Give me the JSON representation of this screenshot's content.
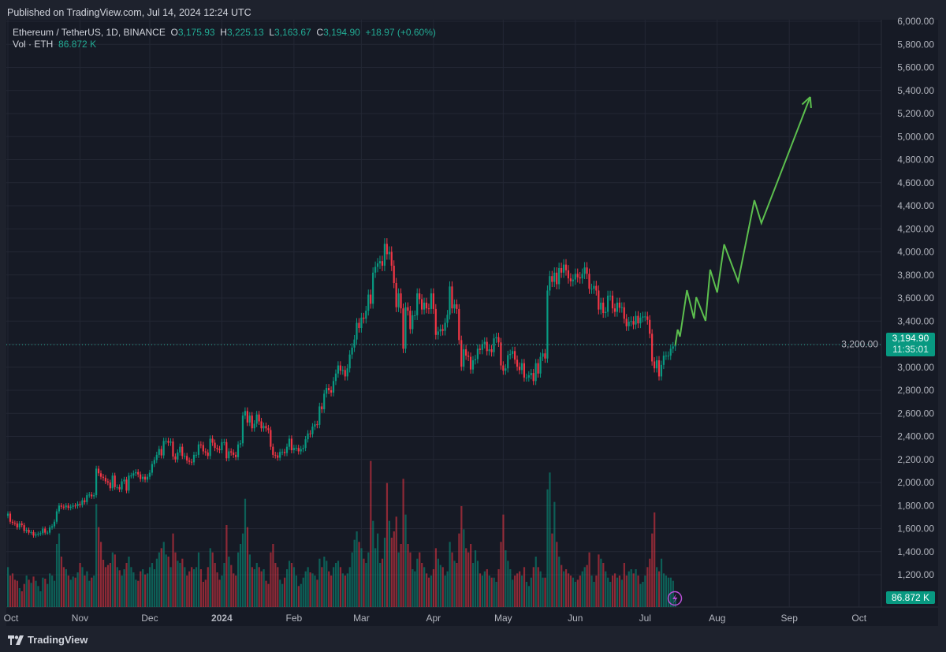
{
  "header": {
    "published": "Published on TradingView.com, Jul 14, 2024 12:24 UTC"
  },
  "legend": {
    "symbol": "Ethereum / TetherUS, 1D, BINANCE",
    "o_label": "O",
    "o": "3,175.93",
    "h_label": "H",
    "h": "3,225.13",
    "l_label": "L",
    "l": "3,163.67",
    "c_label": "C",
    "c": "3,194.90",
    "change": "+18.97 (+0.60%)",
    "vol_label": "Vol · ETH",
    "vol": "86.872 K"
  },
  "price_box": {
    "price": "3,194.90",
    "countdown": "11:35:01"
  },
  "volume_box": "86.872 K",
  "footer": {
    "logo": "TradingView"
  },
  "colors": {
    "up": "#089981",
    "down": "#f23645",
    "projection": "#5cbf4e",
    "background": "#161a25",
    "alert_icon": "#b84fd6"
  },
  "icons": {
    "alert": "lightning-icon",
    "logo": "tradingview-logo-icon"
  },
  "chart_data": {
    "type": "candlestick",
    "interval": "1D",
    "first_open": 1710,
    "y_axis": {
      "ticks": [
        "6,000.00",
        "5,800.00",
        "5,600.00",
        "5,400.00",
        "5,200.00",
        "5,000.00",
        "4,800.00",
        "4,600.00",
        "4,400.00",
        "4,200.00",
        "4,000.00",
        "3,800.00",
        "3,600.00",
        "3,400.00",
        "3,200.00",
        "3,000.00",
        "2,800.00",
        "2,600.00",
        "2,400.00",
        "2,200.00",
        "2,000.00",
        "1,800.00",
        "1,600.00",
        "1,400.00",
        "1,200.00"
      ],
      "ylim": [
        1200,
        6000
      ]
    },
    "x_axis": {
      "ticks": [
        {
          "label": "Oct",
          "date": "2023-10-01"
        },
        {
          "label": "Nov",
          "date": "2023-11-01"
        },
        {
          "label": "Dec",
          "date": "2023-12-01"
        },
        {
          "label": "2024",
          "date": "2024-01-01",
          "bold": true
        },
        {
          "label": "Feb",
          "date": "2024-02-01"
        },
        {
          "label": "Mar",
          "date": "2024-03-01"
        },
        {
          "label": "Apr",
          "date": "2024-04-01"
        },
        {
          "label": "May",
          "date": "2024-05-01"
        },
        {
          "label": "Jun",
          "date": "2024-06-01"
        },
        {
          "label": "Jul",
          "date": "2024-07-01"
        },
        {
          "label": "Aug",
          "date": "2024-08-01"
        },
        {
          "label": "Sep",
          "date": "2024-09-01"
        },
        {
          "label": "Oct",
          "date": "2024-10-01"
        }
      ]
    },
    "grid": true,
    "last_price": 3194.9,
    "daily_close_by_month": {
      "2023-10": [
        1730,
        1660,
        1650,
        1645,
        1610,
        1645,
        1630,
        1580,
        1590,
        1565,
        1570,
        1540,
        1550,
        1555,
        1560,
        1600,
        1565,
        1565,
        1610,
        1620,
        1660,
        1750,
        1800,
        1790,
        1785,
        1800,
        1780,
        1790,
        1800,
        1795,
        1815
      ],
      "2023-11": [
        1805,
        1845,
        1830,
        1890,
        1895,
        1880,
        1890,
        2120,
        2080,
        2050,
        2040,
        2010,
        2000,
        1950,
        2060,
        1960,
        1960,
        1940,
        2010,
        2025,
        1930,
        2060,
        2060,
        2080,
        2090,
        2070,
        2030,
        2050,
        2025,
        2050
      ],
      "2023-12": [
        2085,
        2160,
        2195,
        2240,
        2290,
        2235,
        2360,
        2360,
        2345,
        2355,
        2225,
        2200,
        2260,
        2310,
        2230,
        2230,
        2190,
        2180,
        2175,
        2240,
        2240,
        2330,
        2325,
        2270,
        2260,
        2230,
        2380,
        2345,
        2300,
        2290,
        2280
      ],
      "2024-01": [
        2350,
        2350,
        2210,
        2270,
        2260,
        2240,
        2220,
        2330,
        2340,
        2580,
        2620,
        2520,
        2580,
        2470,
        2510,
        2590,
        2530,
        2470,
        2490,
        2470,
        2455,
        2310,
        2240,
        2235,
        2215,
        2265,
        2265,
        2255,
        2310,
        2380,
        2280
      ],
      "2024-02": [
        2300,
        2300,
        2270,
        2290,
        2300,
        2375,
        2425,
        2420,
        2485,
        2505,
        2500,
        2660,
        2635,
        2770,
        2820,
        2800,
        2780,
        2880,
        2945,
        3015,
        2970,
        2975,
        2920,
        2990,
        3110,
        3170,
        3240,
        3385,
        3340
      ],
      "2024-03": [
        3430,
        3420,
        3490,
        3630,
        3550,
        3820,
        3870,
        3900,
        3920,
        3880,
        4070,
        3980,
        4000,
        3880,
        3730,
        3520,
        3640,
        3510,
        3160,
        3520,
        3490,
        3330,
        3450,
        3450,
        3640,
        3590,
        3500,
        3560,
        3510,
        3505,
        3640
      ],
      "2024-04": [
        3505,
        3280,
        3310,
        3330,
        3315,
        3385,
        3455,
        3700,
        3510,
        3545,
        3505,
        3235,
        3005,
        3155,
        3100,
        3090,
        2980,
        3060,
        3070,
        3160,
        3150,
        3200,
        3220,
        3140,
        3155,
        3130,
        3250,
        3260,
        3215,
        3015
      ],
      "2024-05": [
        2970,
        2990,
        3105,
        3115,
        3140,
        3065,
        3005,
        2975,
        3035,
        2910,
        2910,
        2930,
        2950,
        2880,
        3035,
        2945,
        3090,
        3120,
        3075,
        3665,
        3790,
        3740,
        3820,
        3720,
        3860,
        3820,
        3890,
        3840,
        3770,
        3745,
        3760
      ],
      "2024-06": [
        3810,
        3780,
        3770,
        3810,
        3865,
        3810,
        3680,
        3680,
        3705,
        3665,
        3500,
        3560,
        3470,
        3480,
        3620,
        3620,
        3510,
        3480,
        3560,
        3515,
        3520,
        3420,
        3355,
        3395,
        3400,
        3370,
        3445,
        3380,
        3430,
        3440
      ],
      "2024-07": [
        3440,
        3410,
        3290,
        3050,
        2990,
        3060,
        2920,
        3020,
        3100,
        3100,
        3100,
        3160,
        3180,
        3194.9
      ]
    },
    "daily_volume_k_by_month": {
      "2023-10": [
        380,
        300,
        320,
        260,
        250,
        180,
        150,
        220,
        300,
        260,
        230,
        290,
        250,
        200,
        150,
        280,
        270,
        220,
        320,
        300,
        250,
        600,
        700,
        480,
        380,
        360,
        300,
        260,
        290,
        280,
        330
      ],
      "2023-11": [
        420,
        380,
        300,
        340,
        250,
        280,
        300,
        980,
        760,
        620,
        450,
        380,
        400,
        420,
        520,
        500,
        380,
        350,
        300,
        360,
        420,
        480,
        380,
        330,
        260,
        250,
        340,
        360,
        310,
        320
      ],
      "2023-12": [
        380,
        420,
        360,
        460,
        520,
        560,
        620,
        500,
        480,
        380,
        700,
        520,
        440,
        420,
        460,
        380,
        300,
        340,
        380,
        360,
        380,
        520,
        360,
        240,
        260,
        380,
        560,
        520,
        420,
        330,
        260
      ],
      "2024-01": [
        300,
        420,
        780,
        480,
        400,
        320,
        300,
        520,
        600,
        700,
        1030,
        760,
        500,
        380,
        360,
        420,
        380,
        340,
        360,
        250,
        220,
        520,
        600,
        420,
        380,
        260,
        220,
        280,
        360,
        440,
        420
      ],
      "2024-02": [
        380,
        300,
        200,
        220,
        280,
        340,
        380,
        330,
        320,
        300,
        260,
        460,
        380,
        480,
        440,
        340,
        300,
        380,
        420,
        440,
        380,
        320,
        300,
        320,
        380,
        520,
        640,
        720,
        620
      ],
      "2024-03": [
        560,
        460,
        420,
        520,
        1390,
        820,
        560,
        700,
        420,
        460,
        660,
        1180,
        820,
        660,
        720,
        860,
        520,
        600,
        1220,
        880,
        600,
        520,
        360,
        340,
        460,
        520,
        420,
        380,
        320,
        280,
        300
      ],
      "2024-04": [
        360,
        560,
        460,
        400,
        380,
        300,
        340,
        620,
        520,
        440,
        420,
        700,
        960,
        740,
        560,
        520,
        600,
        420,
        540,
        440,
        320,
        300,
        340,
        360,
        300,
        280,
        280,
        240,
        360,
        620
      ],
      "2024-05": [
        880,
        540,
        440,
        360,
        260,
        300,
        320,
        340,
        300,
        380,
        240,
        200,
        280,
        380,
        480,
        380,
        340,
        280,
        280,
        1120,
        1280,
        700,
        1000,
        620,
        480,
        400,
        340,
        360,
        320,
        300,
        280
      ],
      "2024-06": [
        240,
        260,
        300,
        340,
        380,
        400,
        520,
        300,
        240,
        300,
        500,
        460,
        420,
        340,
        280,
        240,
        300,
        320,
        280,
        300,
        260,
        420,
        300,
        340,
        360,
        320,
        360,
        300,
        220,
        240
      ],
      "2024-07": [
        300,
        380,
        460,
        700,
        900,
        380,
        340,
        460,
        320,
        300,
        280,
        280,
        250,
        86.872
      ]
    },
    "projection_path": [
      {
        "date": "2024-07-14",
        "price": 3190
      },
      {
        "date": "2024-07-15",
        "price": 3326
      },
      {
        "date": "2024-07-16",
        "price": 3265
      },
      {
        "date": "2024-07-19",
        "price": 3668
      },
      {
        "date": "2024-07-22",
        "price": 3422
      },
      {
        "date": "2024-07-23",
        "price": 3607
      },
      {
        "date": "2024-07-27",
        "price": 3402
      },
      {
        "date": "2024-07-29",
        "price": 3846
      },
      {
        "date": "2024-08-01",
        "price": 3648
      },
      {
        "date": "2024-08-04",
        "price": 4065
      },
      {
        "date": "2024-08-10",
        "price": 3743
      },
      {
        "date": "2024-08-17",
        "price": 4448
      },
      {
        "date": "2024-08-20",
        "price": 4249
      },
      {
        "date": "2024-09-10",
        "price": 5344
      }
    ]
  }
}
